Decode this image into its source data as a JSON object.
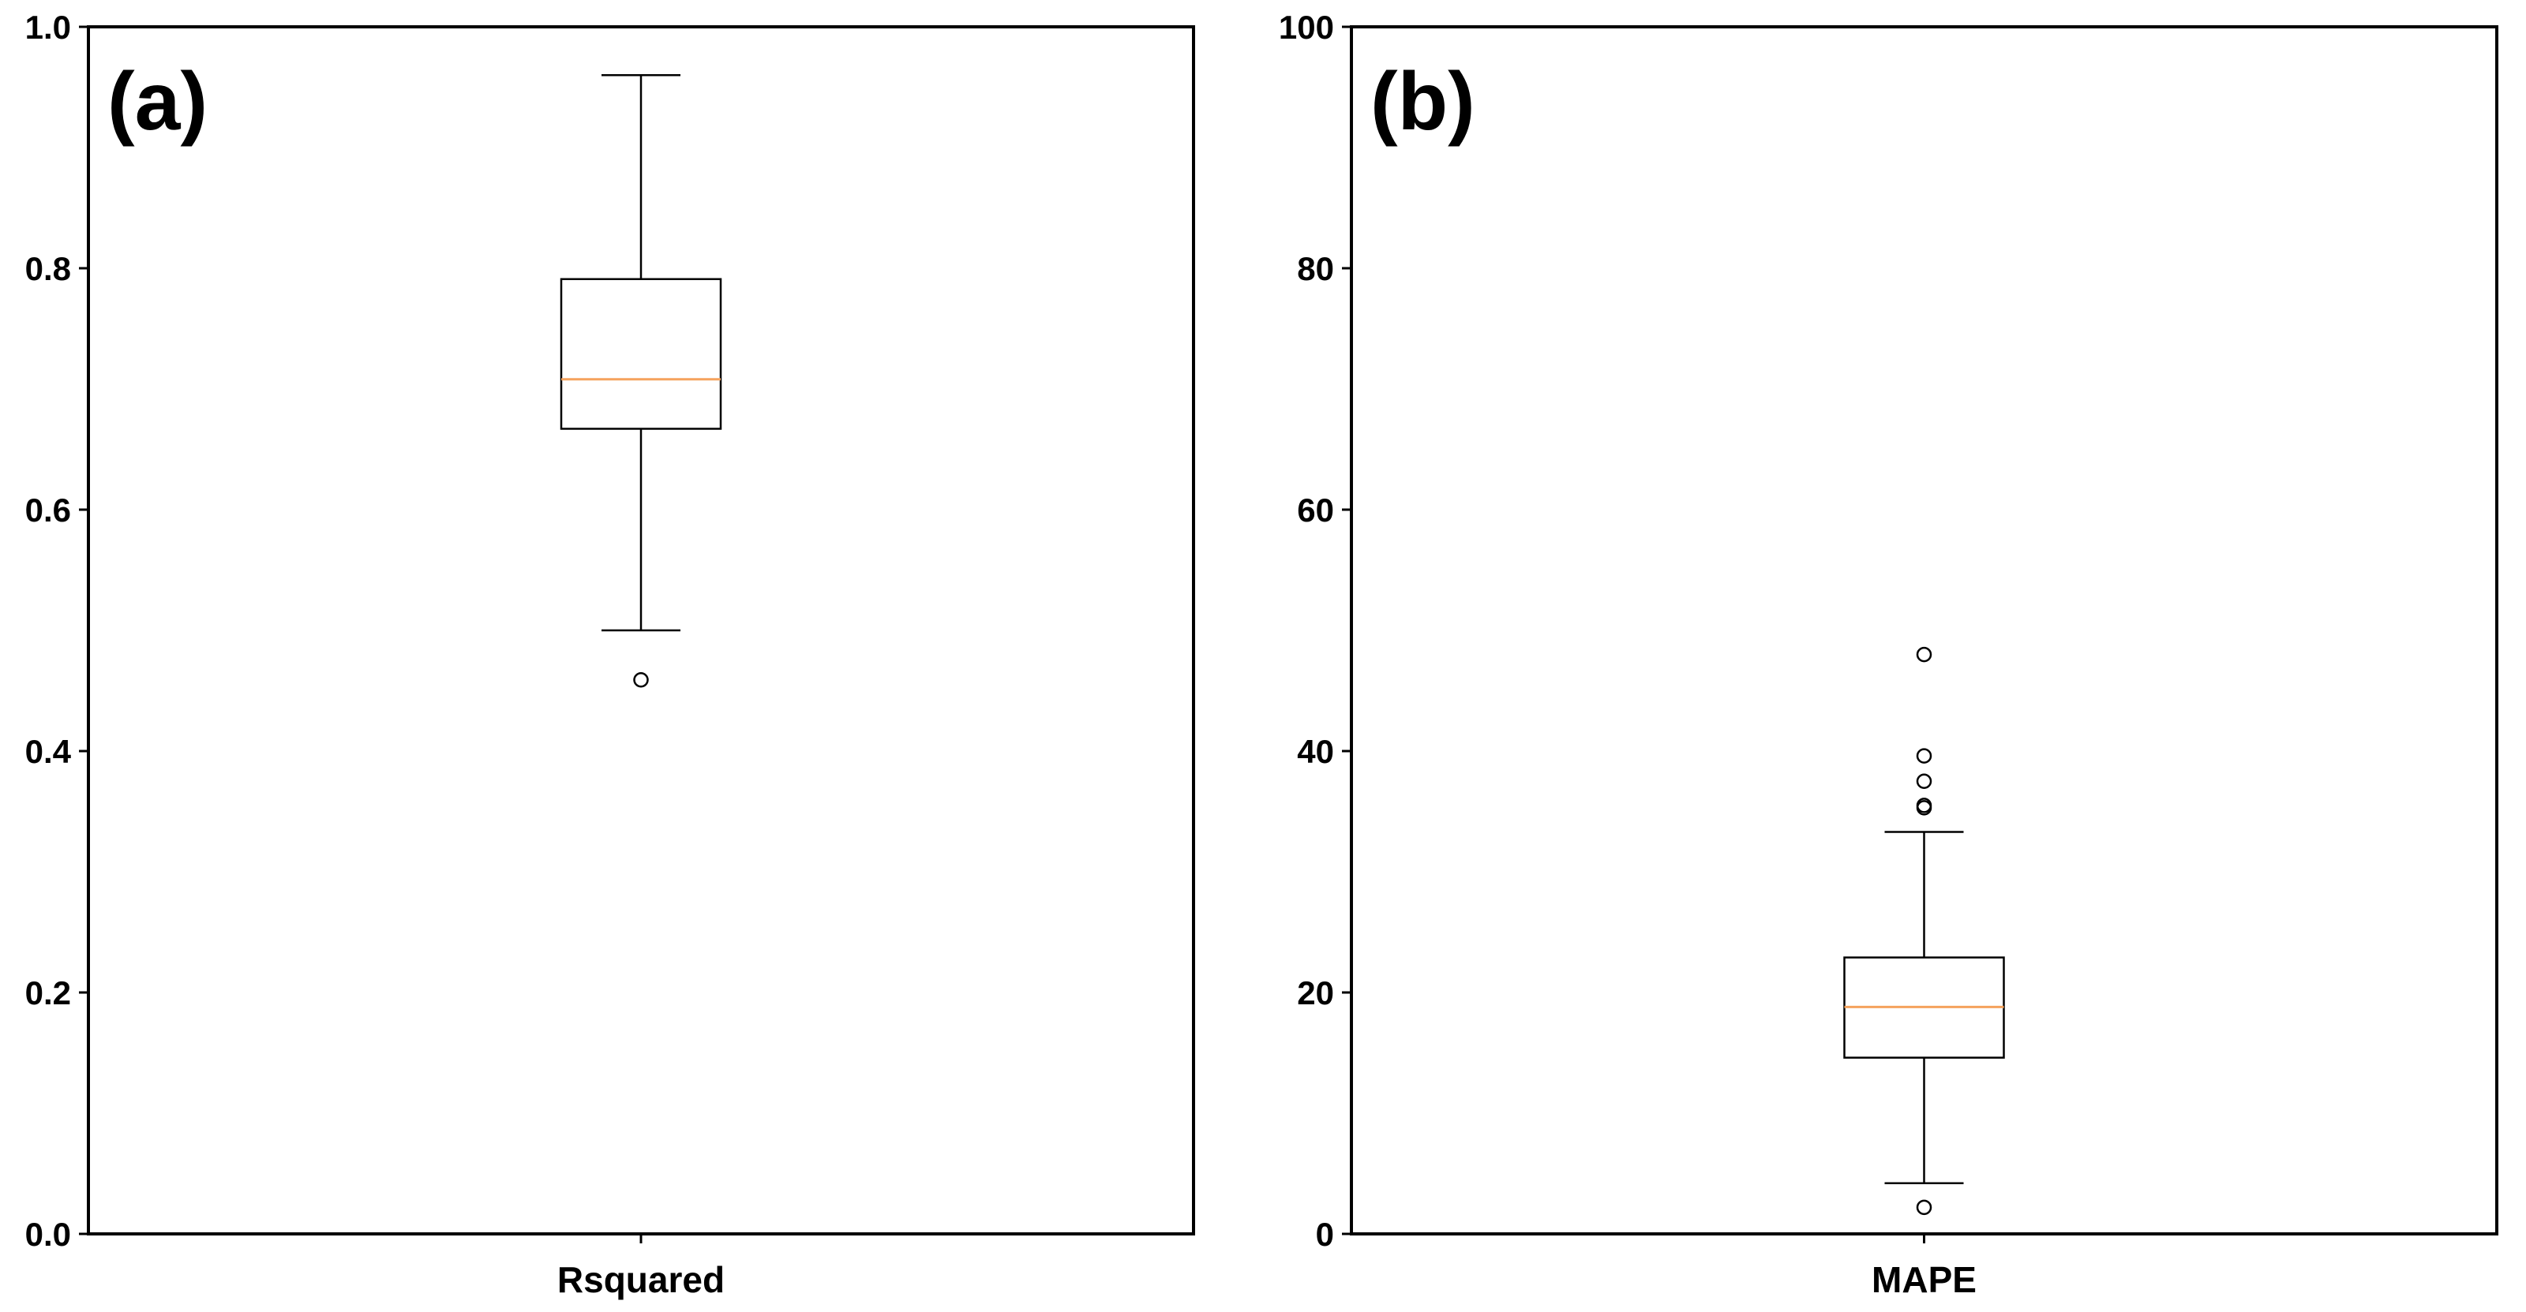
{
  "chart_data": [
    {
      "type": "box",
      "panel_label": "(a)",
      "xlabel": "Rsquared",
      "ylim": [
        0,
        1.0
      ],
      "yticks": [
        "0.0",
        "0.2",
        "0.4",
        "0.6",
        "0.8",
        "1.0"
      ],
      "ytick_values": [
        0,
        0.2,
        0.4,
        0.6,
        0.8,
        1.0
      ],
      "box": {
        "whisker_low": 0.5,
        "q1": 0.667,
        "median": 0.708,
        "q3": 0.791,
        "whisker_high": 0.96
      },
      "outliers": [
        0.459
      ],
      "grid": false
    },
    {
      "type": "box",
      "panel_label": "(b)",
      "xlabel": "MAPE",
      "ylim": [
        0,
        100
      ],
      "yticks": [
        "0",
        "20",
        "40",
        "60",
        "80",
        "100"
      ],
      "ytick_values": [
        0,
        20,
        40,
        60,
        80,
        100
      ],
      "box": {
        "whisker_low": 4.2,
        "q1": 14.6,
        "median": 18.8,
        "q3": 22.9,
        "whisker_high": 33.3
      },
      "outliers": [
        2.2,
        35.3,
        35.5,
        37.5,
        39.6,
        48.0
      ],
      "grid": false
    }
  ],
  "colors": {
    "box_line": "#000000",
    "median_line": "#f5a25d",
    "axis": "#000000",
    "background": "#ffffff"
  }
}
